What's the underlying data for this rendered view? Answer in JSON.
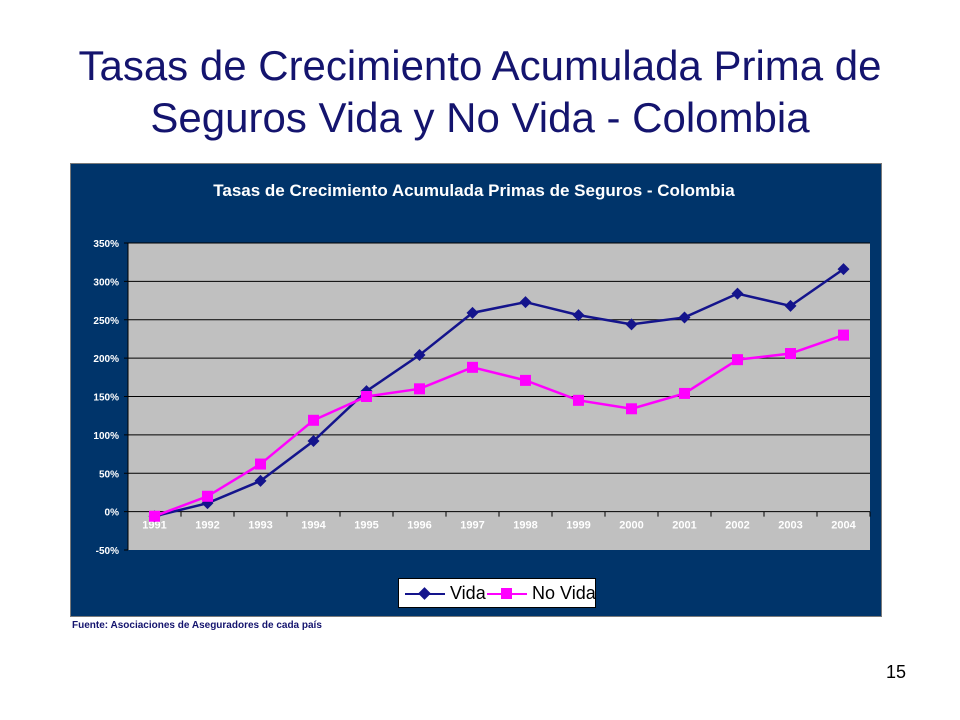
{
  "slide": {
    "title_line1": "Tasas de Crecimiento Acumulada Prima de",
    "title_line2": "Seguros Vida y No Vida - Colombia",
    "source": "Fuente: Asociaciones de Aseguradores de cada país",
    "page_number": "15"
  },
  "colors": {
    "title": "#14146e",
    "chart_background": "#00346a",
    "plot_area": "#c0c0c0",
    "vida": "#14148c",
    "no_vida": "#ff00ff"
  },
  "chart_data": {
    "type": "line",
    "title": "Tasas de Crecimiento Acumulada  Primas de Seguros - Colombia",
    "categories": [
      "1991",
      "1992",
      "1993",
      "1994",
      "1995",
      "1996",
      "1997",
      "1998",
      "1999",
      "2000",
      "2001",
      "2002",
      "2003",
      "2004"
    ],
    "y_ticks": [
      "350%",
      "300%",
      "250%",
      "200%",
      "150%",
      "100%",
      "50%",
      "0%",
      "-50%"
    ],
    "ylim": [
      -50,
      350
    ],
    "y_unit": "%",
    "grid": true,
    "legend_position": "bottom",
    "series": [
      {
        "name": "Vida",
        "marker": "diamond",
        "values": [
          -6,
          11,
          40,
          92,
          157,
          204,
          259,
          273,
          256,
          244,
          253,
          284,
          268,
          316
        ]
      },
      {
        "name": "No Vida",
        "marker": "square",
        "values": [
          -6,
          20,
          62,
          119,
          150,
          160,
          188,
          171,
          145,
          134,
          154,
          198,
          206,
          230
        ]
      }
    ]
  }
}
